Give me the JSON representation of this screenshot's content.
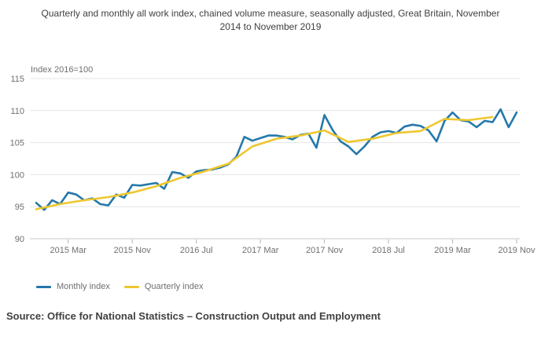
{
  "title_line1": "Quarterly and monthly all work index, chained volume measure, seasonally adjusted, Great Britain, November",
  "title_line2": "2014 to November 2019",
  "unit_label": "Index 2016=100",
  "source": "Source: Office for National Statistics – Construction Output and Employment",
  "legend": {
    "items": [
      {
        "label": "Monthly index",
        "color": "#2478aa"
      },
      {
        "label": "Quarterly index",
        "color": "#eec72f"
      }
    ]
  },
  "colors": {
    "monthly_line": "#2478aa",
    "quarterly_line": "#eec72f",
    "gridline": "#e4e4e4",
    "axis_line": "#c9c9c9",
    "tick_mark": "#b3b3b3",
    "axis_text": "#6f6f6f",
    "title_text": "#414042"
  },
  "chart_data": {
    "type": "line",
    "title": "Quarterly and monthly all work index, chained volume measure, seasonally adjusted, Great Britain, November 2014 to November 2019",
    "x_start": "2014 Nov",
    "x_end": "2019 Nov",
    "x_unit": "months since Nov 2014",
    "x_ticks": [
      {
        "label": "2015 Mar",
        "month": 4
      },
      {
        "label": "2015 Nov",
        "month": 12
      },
      {
        "label": "2016 Jul",
        "month": 20
      },
      {
        "label": "2017 Mar",
        "month": 28
      },
      {
        "label": "2017 Nov",
        "month": 36
      },
      {
        "label": "2018 Jul",
        "month": 44
      },
      {
        "label": "2019 Mar",
        "month": 52
      },
      {
        "label": "2019 Nov",
        "month": 60
      }
    ],
    "y_axis": {
      "label": "Index 2016=100",
      "ticks": [
        90,
        95,
        100,
        105,
        110,
        115
      ],
      "ylim": [
        90,
        115
      ]
    },
    "grid": "horizontal",
    "legend_position": "bottom-left",
    "series": [
      {
        "name": "Monthly index",
        "color": "#2478aa",
        "x": [
          0,
          1,
          2,
          3,
          4,
          5,
          6,
          7,
          8,
          9,
          10,
          11,
          12,
          13,
          14,
          15,
          16,
          17,
          18,
          19,
          20,
          21,
          22,
          23,
          24,
          25,
          26,
          27,
          28,
          29,
          30,
          31,
          32,
          33,
          34,
          35,
          36,
          37,
          38,
          39,
          40,
          41,
          42,
          43,
          44,
          45,
          46,
          47,
          48,
          49,
          50,
          51,
          52,
          53,
          54,
          55,
          56,
          57,
          58,
          59,
          60
        ],
        "values": [
          95.6,
          94.5,
          96.0,
          95.4,
          97.2,
          96.9,
          96.0,
          96.3,
          95.4,
          95.2,
          96.9,
          96.4,
          98.4,
          98.3,
          98.5,
          98.7,
          97.8,
          100.4,
          100.2,
          99.5,
          100.5,
          100.7,
          100.8,
          101.1,
          101.6,
          102.8,
          105.9,
          105.3,
          105.7,
          106.1,
          106.1,
          105.9,
          105.5,
          106.2,
          106.4,
          104.2,
          109.3,
          107.0,
          105.2,
          104.4,
          103.2,
          104.4,
          105.9,
          106.6,
          106.8,
          106.5,
          107.5,
          107.8,
          107.6,
          106.9,
          105.2,
          108.4,
          109.7,
          108.5,
          108.3,
          107.4,
          108.4,
          108.2,
          110.2,
          107.4,
          109.7
        ]
      },
      {
        "name": "Quarterly index",
        "color": "#eec72f",
        "x": [
          0,
          3,
          6,
          9,
          12,
          15,
          18,
          21,
          24,
          27,
          30,
          33,
          36,
          39,
          42,
          45,
          48,
          51,
          54,
          57
        ],
        "values": [
          94.6,
          95.4,
          96.0,
          96.5,
          97.2,
          98.2,
          99.5,
          100.5,
          101.7,
          104.4,
          105.6,
          106.1,
          106.9,
          105.1,
          105.6,
          106.5,
          106.8,
          108.7,
          108.5,
          109.0
        ]
      }
    ]
  }
}
